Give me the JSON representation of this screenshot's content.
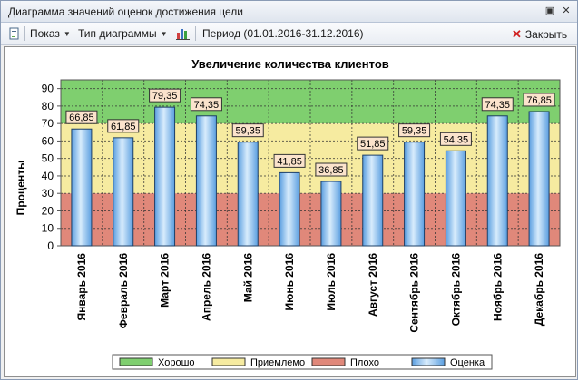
{
  "window": {
    "title": "Диаграмма значений оценок достижения цели"
  },
  "toolbar": {
    "show_label": "Показ",
    "chart_type_label": "Тип диаграммы",
    "period_label": "Период (01.01.2016-31.12.2016)",
    "close_label": "Закрыть"
  },
  "colors": {
    "good": "#7fcf6f",
    "acceptable": "#f6eba0",
    "bad": "#e0887a",
    "bar": "#8fc4ee",
    "label_bg": "#fbe3cc"
  },
  "chart_data": {
    "type": "bar",
    "title": "Увеличение количества клиентов",
    "ylabel": "Проценты",
    "xlabel": "",
    "ylim": [
      0,
      95
    ],
    "yticks": [
      0,
      10,
      20,
      30,
      40,
      50,
      60,
      70,
      80,
      90
    ],
    "grid": true,
    "categories": [
      "Январь 2016",
      "Февраль 2016",
      "Март 2016",
      "Апрель 2016",
      "Май 2016",
      "Июнь 2016",
      "Июль 2016",
      "Август 2016",
      "Сентябрь 2016",
      "Октябрь 2016",
      "Ноябрь 2016",
      "Декабрь 2016"
    ],
    "values": [
      66.85,
      61.85,
      79.35,
      74.35,
      59.35,
      41.85,
      36.85,
      51.85,
      59.35,
      54.35,
      74.35,
      76.85
    ],
    "value_labels": [
      "66,85",
      "61,85",
      "79,35",
      "74,35",
      "59,35",
      "41,85",
      "36,85",
      "51,85",
      "59,35",
      "54,35",
      "74,35",
      "76,85"
    ],
    "bands": [
      {
        "name": "Хорошо",
        "from": 70,
        "to": 95,
        "color": "#7fcf6f"
      },
      {
        "name": "Приемлемо",
        "from": 30,
        "to": 70,
        "color": "#f6eba0"
      },
      {
        "name": "Плохо",
        "from": 0,
        "to": 30,
        "color": "#e0887a"
      }
    ],
    "legend_position": "bottom",
    "legend": [
      "Хорошо",
      "Приемлемо",
      "Плохо",
      "Оценка"
    ]
  }
}
